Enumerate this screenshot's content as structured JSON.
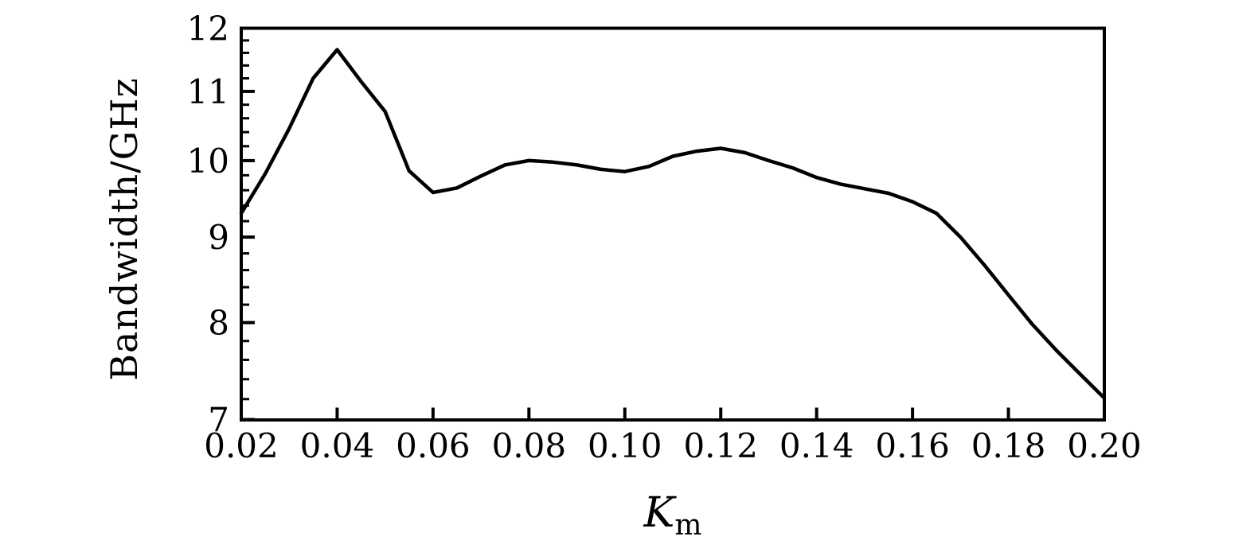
{
  "figure": {
    "background": "#ffffff",
    "ink": "#000000"
  },
  "chart_data": {
    "type": "line",
    "title": "",
    "xlabel_main": "K",
    "xlabel_sub": "m",
    "ylabel": "Bandwidth/GHz",
    "xlim": [
      0.02,
      0.2
    ],
    "ylim": [
      7,
      12
    ],
    "y_scale": "log",
    "grid": false,
    "legend": false,
    "x_tick_labels": [
      "0.02",
      "0.04",
      "0.06",
      "0.08",
      "0.10",
      "0.12",
      "0.14",
      "0.16",
      "0.18",
      "0.20"
    ],
    "x_ticks": [
      0.02,
      0.04,
      0.06,
      0.08,
      0.1,
      0.12,
      0.14,
      0.16,
      0.18,
      0.2
    ],
    "y_tick_labels": [
      "7",
      "8",
      "9",
      "10",
      "11",
      "12"
    ],
    "y_ticks": [
      7,
      8,
      9,
      10,
      11,
      12
    ],
    "y_minor_tick_step": 0.2,
    "series": [
      {
        "name": "bandwidth",
        "color": "#000000",
        "points": [
          [
            0.02,
            9.3
          ],
          [
            0.025,
            9.82
          ],
          [
            0.03,
            10.45
          ],
          [
            0.035,
            11.2
          ],
          [
            0.04,
            11.65
          ],
          [
            0.045,
            11.15
          ],
          [
            0.05,
            10.7
          ],
          [
            0.055,
            9.86
          ],
          [
            0.06,
            9.57
          ],
          [
            0.065,
            9.63
          ],
          [
            0.07,
            9.79
          ],
          [
            0.075,
            9.94
          ],
          [
            0.08,
            10.0
          ],
          [
            0.085,
            9.98
          ],
          [
            0.09,
            9.94
          ],
          [
            0.095,
            9.88
          ],
          [
            0.1,
            9.85
          ],
          [
            0.105,
            9.92
          ],
          [
            0.11,
            10.06
          ],
          [
            0.115,
            10.13
          ],
          [
            0.12,
            10.17
          ],
          [
            0.125,
            10.11
          ],
          [
            0.13,
            10.0
          ],
          [
            0.135,
            9.9
          ],
          [
            0.14,
            9.77
          ],
          [
            0.145,
            9.68
          ],
          [
            0.15,
            9.62
          ],
          [
            0.155,
            9.56
          ],
          [
            0.16,
            9.45
          ],
          [
            0.165,
            9.3
          ],
          [
            0.17,
            9.0
          ],
          [
            0.175,
            8.66
          ],
          [
            0.18,
            8.31
          ],
          [
            0.185,
            7.98
          ],
          [
            0.19,
            7.7
          ],
          [
            0.195,
            7.45
          ],
          [
            0.2,
            7.21
          ]
        ]
      }
    ]
  }
}
